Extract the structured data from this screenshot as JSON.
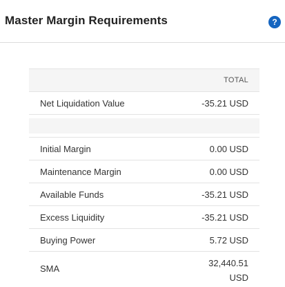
{
  "header": {
    "title": "Master Margin Requirements",
    "help_icon": "?"
  },
  "table": {
    "column_header": "TOTAL",
    "net_liquidation": {
      "label": "Net Liquidation Value",
      "value": "-35.21 USD"
    },
    "rows": [
      {
        "label": "Initial Margin",
        "value": "0.00 USD"
      },
      {
        "label": "Maintenance Margin",
        "value": "0.00 USD"
      },
      {
        "label": "Available Funds",
        "value": "-35.21 USD"
      },
      {
        "label": "Excess Liquidity",
        "value": "-35.21 USD"
      },
      {
        "label": "Buying Power",
        "value": "5.72 USD"
      }
    ],
    "sma": {
      "label": "SMA",
      "value_line1": "32,440.51",
      "value_line2": "USD"
    }
  }
}
